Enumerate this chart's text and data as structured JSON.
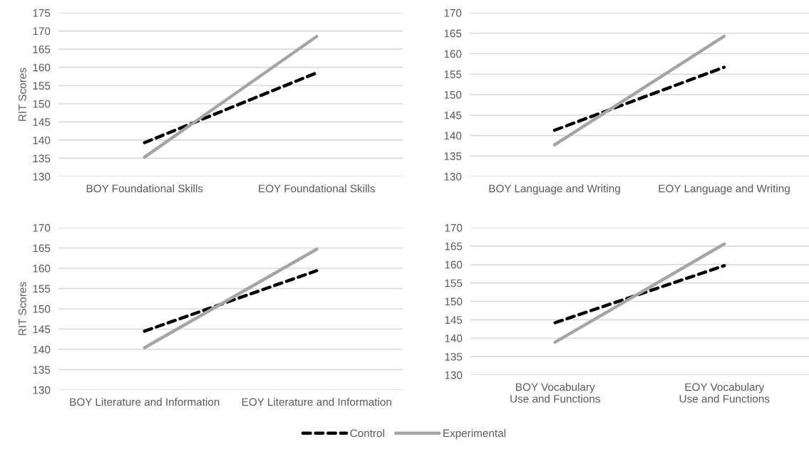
{
  "chart_data": [
    {
      "type": "line",
      "ylabel": "RIT Scores",
      "categories": [
        "BOY Foundational Skills",
        "EOY Foundational Skills"
      ],
      "ylim": [
        130,
        175
      ],
      "yticks": [
        130,
        135,
        140,
        145,
        150,
        155,
        160,
        165,
        170,
        175
      ],
      "grid": "y",
      "marker": "none",
      "legend": "bottom",
      "series": [
        {
          "name": "Control",
          "color": "#000000",
          "line_style": "dashed",
          "values": [
            139.3,
            158.5
          ]
        },
        {
          "name": "Experimental",
          "color": "#a5a5a5",
          "line_style": "solid",
          "values": [
            135.3,
            168.5
          ]
        }
      ]
    },
    {
      "type": "line",
      "categories": [
        "BOY Language and Writing",
        "EOY Language and Writing"
      ],
      "ylim": [
        130,
        170
      ],
      "yticks": [
        130,
        135,
        140,
        145,
        150,
        155,
        160,
        165,
        170
      ],
      "grid": "y",
      "marker": "none",
      "series": [
        {
          "color": "#000000",
          "line_style": "dashed",
          "values": [
            141.3,
            156.7
          ]
        },
        {
          "color": "#a5a5a5",
          "line_style": "solid",
          "values": [
            137.7,
            164.3
          ]
        }
      ]
    },
    {
      "type": "line",
      "ylabel": "RIT Scores",
      "categories": [
        "BOY Literature and Information",
        "EOY Literature and Information"
      ],
      "ylim": [
        130,
        170
      ],
      "yticks": [
        130,
        135,
        140,
        145,
        150,
        155,
        160,
        165,
        170
      ],
      "grid": "y",
      "marker": "none",
      "series": [
        {
          "color": "#000000",
          "line_style": "dashed",
          "values": [
            144.5,
            159.4
          ]
        },
        {
          "color": "#a5a5a5",
          "line_style": "solid",
          "values": [
            140.4,
            164.7
          ]
        }
      ]
    },
    {
      "type": "line",
      "categories": [
        "BOY Vocabulary Use and Functions",
        "EOY Vocabulary Use and Functions"
      ],
      "ylim": [
        130,
        170
      ],
      "yticks": [
        130,
        135,
        140,
        145,
        150,
        155,
        160,
        165,
        170
      ],
      "grid": "y",
      "marker": "none",
      "series": [
        {
          "color": "#000000",
          "line_style": "dashed",
          "values": [
            144.2,
            159.7
          ]
        },
        {
          "color": "#a5a5a5",
          "line_style": "solid",
          "values": [
            138.9,
            165.6
          ]
        }
      ]
    }
  ]
}
